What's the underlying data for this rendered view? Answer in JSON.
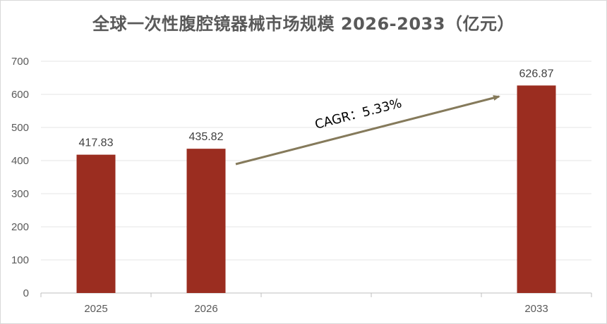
{
  "chart_data": {
    "type": "bar",
    "title": "全球一次性腹腔镜器械市场规模 2026-2033（亿元）",
    "categories": [
      "2025",
      "2026",
      "",
      "",
      "2033"
    ],
    "values": [
      417.83,
      435.82,
      null,
      null,
      626.87
    ],
    "data_labels": [
      "417.83",
      "435.82",
      "",
      "",
      "626.87"
    ],
    "ylim": [
      0,
      700
    ],
    "yticks": [
      0,
      100,
      200,
      300,
      400,
      500,
      600,
      700
    ],
    "grid": true,
    "legend": "none",
    "annotation": "CAGR：5.33%",
    "colors": {
      "bar": "#9b2d20",
      "arrow": "#857a5b",
      "grid": "#e6e6e6",
      "axis": "#bfbfbf"
    }
  }
}
